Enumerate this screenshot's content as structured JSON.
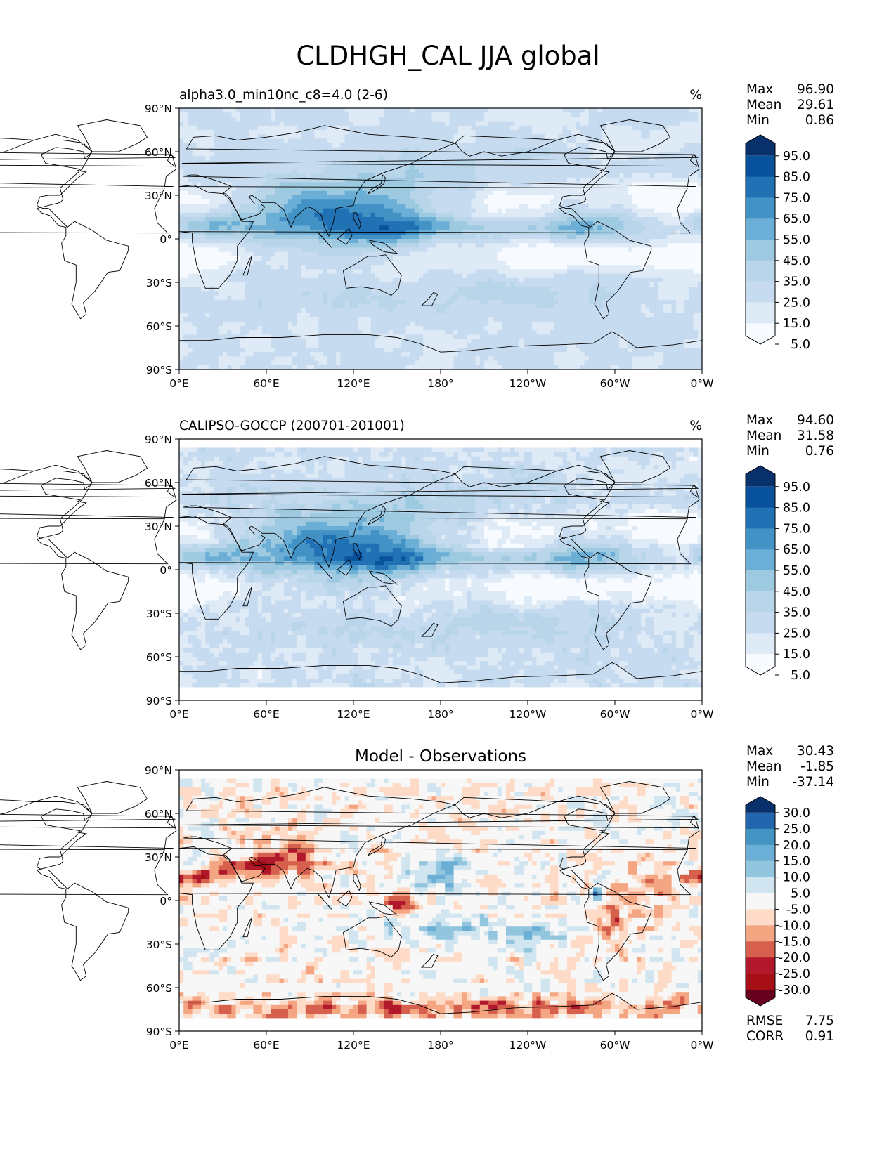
{
  "figure": {
    "title": "CLDHGH_CAL JJA global"
  },
  "lat_ticks": [
    "90°N",
    "60°N",
    "30°N",
    "0°",
    "30°S",
    "60°S",
    "90°S"
  ],
  "lon_ticks": [
    "0°E",
    "60°E",
    "120°E",
    "180°",
    "120°W",
    "60°W",
    "0°W"
  ],
  "chart_data": [
    {
      "type": "heatmap",
      "name": "test",
      "title_left": "alpha3.0_min10nc_c8=4.0 (2-6)",
      "title_center": "",
      "units": "%",
      "stats": [
        {
          "label": "Max",
          "value": "96.90"
        },
        {
          "label": "Mean",
          "value": "29.61"
        },
        {
          "label": "Min",
          "value": "0.86"
        }
      ],
      "colorbar": {
        "labels": [
          "95.0",
          "85.0",
          "75.0",
          "65.0",
          "55.0",
          "45.0",
          "35.0",
          "25.0",
          "15.0",
          "5.0"
        ],
        "colors": [
          "#08306b",
          "#08519c",
          "#2171b5",
          "#4292c6",
          "#6baed6",
          "#9ecae1",
          "#b8d5ea",
          "#c6dbef",
          "#deebf7",
          "#f7fbff"
        ],
        "extend": "both"
      },
      "xlim": [
        0,
        360
      ],
      "ylim": [
        -90,
        90
      ]
    },
    {
      "type": "heatmap",
      "name": "reference",
      "title_left": "CALIPSO-GOCCP (200701-201001)",
      "title_center": "",
      "units": "%",
      "stats": [
        {
          "label": "Max",
          "value": "94.60"
        },
        {
          "label": "Mean",
          "value": "31.58"
        },
        {
          "label": "Min",
          "value": "0.76"
        }
      ],
      "colorbar": {
        "labels": [
          "95.0",
          "85.0",
          "75.0",
          "65.0",
          "55.0",
          "45.0",
          "35.0",
          "25.0",
          "15.0",
          "5.0"
        ],
        "colors": [
          "#08306b",
          "#08519c",
          "#2171b5",
          "#4292c6",
          "#6baed6",
          "#9ecae1",
          "#b8d5ea",
          "#c6dbef",
          "#deebf7",
          "#f7fbff"
        ],
        "extend": "both"
      },
      "xlim": [
        0,
        360
      ],
      "ylim": [
        -90,
        90
      ]
    },
    {
      "type": "heatmap",
      "name": "difference",
      "title_left": "",
      "title_center": "Model - Observations",
      "units": "",
      "stats": [
        {
          "label": "Max",
          "value": "30.43"
        },
        {
          "label": "Mean",
          "value": "-1.85"
        },
        {
          "label": "Min",
          "value": "-37.14"
        }
      ],
      "extra_stats": [
        {
          "label": "RMSE",
          "value": "7.75"
        },
        {
          "label": "CORR",
          "value": "0.91"
        }
      ],
      "colorbar": {
        "labels": [
          "30.0",
          "25.0",
          "20.0",
          "15.0",
          "10.0",
          "5.0",
          "-5.0",
          "-10.0",
          "-15.0",
          "-20.0",
          "-25.0",
          "-30.0"
        ],
        "colors": [
          "#08306b",
          "#2166ac",
          "#4393c3",
          "#6baed6",
          "#92c5de",
          "#d1e5f0",
          "#f7f7f7",
          "#fddbc7",
          "#f4a582",
          "#d6604d",
          "#b2182b",
          "#a50f15",
          "#67001f"
        ],
        "extend": "both"
      },
      "xlim": [
        0,
        360
      ],
      "ylim": [
        -90,
        90
      ]
    }
  ]
}
